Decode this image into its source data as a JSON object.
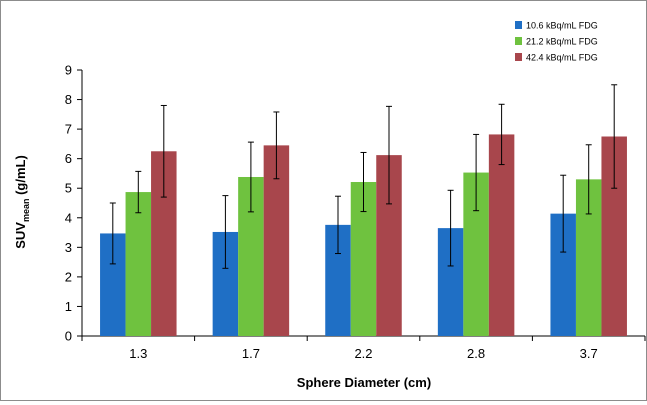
{
  "chart_data": {
    "type": "bar",
    "title": "",
    "xlabel": "Sphere Diameter (cm)",
    "ylabel": "SUV",
    "ylabel_subscript": "mean",
    "ylabel_unit": " (g/mL)",
    "categories": [
      "1.3",
      "1.7",
      "2.2",
      "2.8",
      "3.7"
    ],
    "ylim": [
      0,
      9
    ],
    "yticks": [
      "0",
      "1",
      "2",
      "3",
      "4",
      "5",
      "6",
      "7",
      "8",
      "9"
    ],
    "grid": false,
    "legend_position": "top-right",
    "series": [
      {
        "name": "10.6 kBq/mL FDG",
        "color": "#1f6fc5",
        "values": [
          3.47,
          3.52,
          3.76,
          3.65,
          4.14
        ],
        "error": [
          1.03,
          1.23,
          0.97,
          1.28,
          1.3
        ]
      },
      {
        "name": "21.2 kBq/mL FDG",
        "color": "#6fc23f",
        "values": [
          4.87,
          5.38,
          5.21,
          5.53,
          5.3
        ],
        "error": [
          0.7,
          1.18,
          1.0,
          1.29,
          1.17
        ]
      },
      {
        "name": "42.4 kBq/mL FDG",
        "color": "#a8464c",
        "values": [
          6.25,
          6.45,
          6.12,
          6.82,
          6.75
        ],
        "error": [
          1.55,
          1.13,
          1.65,
          1.02,
          1.75
        ]
      }
    ]
  }
}
